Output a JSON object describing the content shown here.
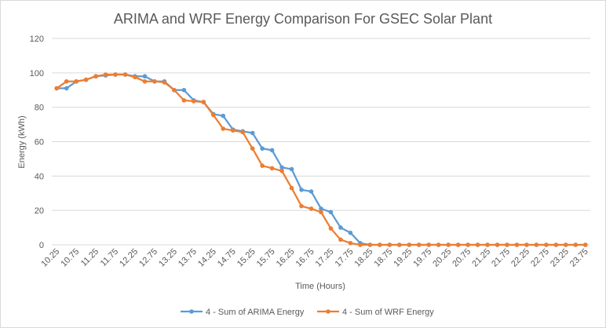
{
  "chart_data": {
    "type": "line",
    "title": "ARIMA and WRF Energy Comparison For GSEC Solar Plant",
    "xlabel": "Time (Hours)",
    "ylabel": "Energy (kWh)",
    "ylim": [
      0,
      120
    ],
    "yticks": [
      "0",
      "20",
      "40",
      "60",
      "80",
      "100",
      "120"
    ],
    "grid": true,
    "legend_position": "bottom",
    "x": [
      "10.25",
      "10.5",
      "10.75",
      "11",
      "11.25",
      "11.5",
      "11.75",
      "12",
      "12.25",
      "12.5",
      "12.75",
      "13",
      "13.25",
      "13.5",
      "13.75",
      "14",
      "14.25",
      "14.5",
      "14.75",
      "15",
      "15.25",
      "15.5",
      "15.75",
      "16",
      "16.25",
      "16.5",
      "16.75",
      "17",
      "17.25",
      "17.5",
      "17.75",
      "18",
      "18.25",
      "18.5",
      "18.75",
      "19",
      "19.25",
      "19.5",
      "19.75",
      "20",
      "20.25",
      "20.5",
      "20.75",
      "21",
      "21.25",
      "21.5",
      "21.75",
      "22",
      "22.25",
      "22.5",
      "22.75",
      "23",
      "23.25",
      "23.5",
      "23.75"
    ],
    "x_tick_labels": [
      "10.25",
      "10.75",
      "11.25",
      "11.75",
      "12.25",
      "12.75",
      "13.25",
      "13.75",
      "14.25",
      "14.75",
      "15.25",
      "15.75",
      "16.25",
      "16.75",
      "17.25",
      "17.75",
      "18.25",
      "18.75",
      "19.25",
      "19.75",
      "20.25",
      "20.75",
      "21.25",
      "21.75",
      "22.25",
      "22.75",
      "23.25",
      "23.75"
    ],
    "series": [
      {
        "name": "4 - Sum of ARIMA Energy",
        "color": "#5b9bd5",
        "values": [
          91,
          91,
          95,
          96,
          98,
          98.5,
          99,
          99,
          98,
          98,
          95,
          95,
          90,
          90,
          84,
          83,
          76,
          75,
          67,
          66,
          65,
          56,
          55,
          45,
          44,
          32,
          31,
          21,
          19,
          10,
          7,
          1,
          0,
          0,
          0,
          0,
          0,
          0,
          0,
          0,
          0,
          0,
          0,
          0,
          0,
          0,
          0,
          0,
          0,
          0,
          0,
          0,
          0,
          0,
          0
        ]
      },
      {
        "name": "4 - Sum of WRF Energy",
        "color": "#ed7d31",
        "values": [
          91,
          95,
          95,
          96,
          98,
          99,
          99,
          99,
          97.5,
          95,
          95,
          94.5,
          90,
          84,
          83.5,
          83,
          75.5,
          67.5,
          66.5,
          65.5,
          56,
          46,
          44.5,
          43,
          33,
          22.5,
          21,
          19,
          9.5,
          3,
          1,
          0,
          0,
          0,
          0,
          0,
          0,
          0,
          0,
          0,
          0,
          0,
          0,
          0,
          0,
          0,
          0,
          0,
          0,
          0,
          0,
          0,
          0,
          0,
          0
        ]
      }
    ]
  }
}
